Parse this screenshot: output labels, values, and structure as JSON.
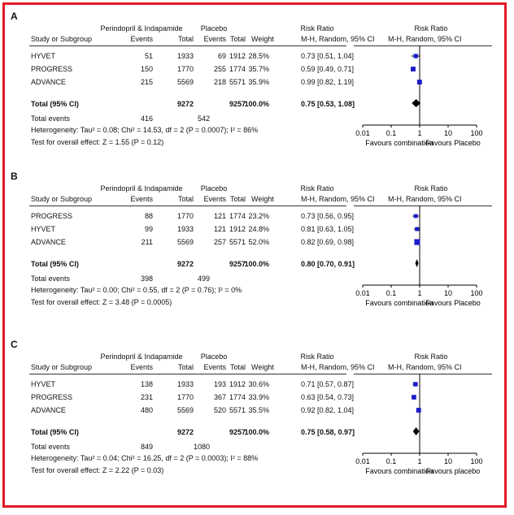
{
  "headers": {
    "group1": "Perindopril & Indapamide",
    "group2": "Placebo",
    "study": "Study or Subgroup",
    "events": "Events",
    "total": "Total",
    "weight": "Weight",
    "rr": "Risk Ratio",
    "rr_method": "M-H, Random, 95% CI"
  },
  "chart_data": [
    {
      "type": "forest",
      "label": "A",
      "xscale": "log",
      "ticks": [
        0.01,
        0.1,
        1,
        10,
        100
      ],
      "tick_labels": [
        "0.01",
        "0.1",
        "1",
        "10",
        "100"
      ],
      "left_label": "Favours combination",
      "right_label": "Favours Placebo",
      "studies": [
        {
          "name": "HYVET",
          "events1": "51",
          "total1": "1933",
          "events2": "69",
          "total2": "1912",
          "weight": "28.5%",
          "rr_text": "0.73 [0.51, 1.04]",
          "rr": 0.73,
          "lo": 0.51,
          "hi": 1.04,
          "w": 28.5
        },
        {
          "name": "PROGRESS",
          "events1": "150",
          "total1": "1770",
          "events2": "255",
          "total2": "1774",
          "weight": "35.7%",
          "rr_text": "0.59 [0.49, 0.71]",
          "rr": 0.59,
          "lo": 0.49,
          "hi": 0.71,
          "w": 35.7
        },
        {
          "name": "ADVANCE",
          "events1": "215",
          "total1": "5569",
          "events2": "218",
          "total2": "5571",
          "weight": "35.9%",
          "rr_text": "0.99 [0.82, 1.19]",
          "rr": 0.99,
          "lo": 0.82,
          "hi": 1.19,
          "w": 35.9
        }
      ],
      "total": {
        "name": "Total (95% CI)",
        "total1": "9272",
        "total2": "9257",
        "weight": "100.0%",
        "rr_text": "0.75 [0.53, 1.08]",
        "rr": 0.75,
        "lo": 0.53,
        "hi": 1.08
      },
      "total_events": {
        "label": "Total events",
        "events1": "416",
        "events2": "542"
      },
      "heterogeneity": "Heterogeneity: Tau² = 0.08; Chi² = 14.53, df = 2 (P = 0.0007); I² = 86%",
      "overall": "Test for overall effect: Z = 1.55 (P = 0.12)"
    },
    {
      "type": "forest",
      "label": "B",
      "xscale": "log",
      "ticks": [
        0.01,
        0.1,
        1,
        10,
        100
      ],
      "tick_labels": [
        "0.01",
        "0.1",
        "1",
        "10",
        "100"
      ],
      "left_label": "Favours combination",
      "right_label": "Favours Placebo",
      "studies": [
        {
          "name": "PROGRESS",
          "events1": "88",
          "total1": "1770",
          "events2": "121",
          "total2": "1774",
          "weight": "23.2%",
          "rr_text": "0.73 [0.56, 0.95]",
          "rr": 0.73,
          "lo": 0.56,
          "hi": 0.95,
          "w": 23.2
        },
        {
          "name": "HYVET",
          "events1": "99",
          "total1": "1933",
          "events2": "121",
          "total2": "1912",
          "weight": "24.8%",
          "rr_text": "0.81 [0.63, 1.05]",
          "rr": 0.81,
          "lo": 0.63,
          "hi": 1.05,
          "w": 24.8
        },
        {
          "name": "ADVANCE",
          "events1": "211",
          "total1": "5569",
          "events2": "257",
          "total2": "5571",
          "weight": "52.0%",
          "rr_text": "0.82 [0.69, 0.98]",
          "rr": 0.82,
          "lo": 0.69,
          "hi": 0.98,
          "w": 52.0
        }
      ],
      "total": {
        "name": "Total (95% CI)",
        "total1": "9272",
        "total2": "9257",
        "weight": "100.0%",
        "rr_text": "0.80 [0.70, 0.91]",
        "rr": 0.8,
        "lo": 0.7,
        "hi": 0.91
      },
      "total_events": {
        "label": "Total events",
        "events1": "398",
        "events2": "499"
      },
      "heterogeneity": "Heterogeneity: Tau² = 0.00; Chi² = 0.55, df = 2 (P = 0.76); I² = 0%",
      "overall": "Test for overall effect: Z = 3.48 (P = 0.0005)"
    },
    {
      "type": "forest",
      "label": "C",
      "xscale": "log",
      "ticks": [
        0.01,
        0.1,
        1,
        10,
        100
      ],
      "tick_labels": [
        "0.01",
        "0.1",
        "1",
        "10",
        "100"
      ],
      "left_label": "Favours combination",
      "right_label": "Favours placebo",
      "studies": [
        {
          "name": "HYVET",
          "events1": "138",
          "total1": "1933",
          "events2": "193",
          "total2": "1912",
          "weight": "30.6%",
          "rr_text": "0.71 [0.57, 0.87]",
          "rr": 0.71,
          "lo": 0.57,
          "hi": 0.87,
          "w": 30.6
        },
        {
          "name": "PROGRESS",
          "events1": "231",
          "total1": "1770",
          "events2": "367",
          "total2": "1774",
          "weight": "33.9%",
          "rr_text": "0.63 [0.54, 0.73]",
          "rr": 0.63,
          "lo": 0.54,
          "hi": 0.73,
          "w": 33.9
        },
        {
          "name": "ADVANCE",
          "events1": "480",
          "total1": "5569",
          "events2": "520",
          "total2": "5571",
          "weight": "35.5%",
          "rr_text": "0.92 [0.82, 1.04]",
          "rr": 0.92,
          "lo": 0.82,
          "hi": 1.04,
          "w": 35.5
        }
      ],
      "total": {
        "name": "Total (95% CI)",
        "total1": "9272",
        "total2": "9257",
        "weight": "100.0%",
        "rr_text": "0.75 [0.58, 0.97]",
        "rr": 0.75,
        "lo": 0.58,
        "hi": 0.97
      },
      "total_events": {
        "label": "Total events",
        "events1": "849",
        "events2": "1080"
      },
      "heterogeneity": "Heterogeneity: Tau² = 0.04; Chi² = 16.25, df = 2 (P = 0.0003); I² = 88%",
      "overall": "Test for overall effect: Z = 2.22 (P = 0.03)"
    }
  ],
  "colors": {
    "frame": "#e01b24",
    "marker": "#1c1cc8",
    "diamond": "#000000"
  }
}
